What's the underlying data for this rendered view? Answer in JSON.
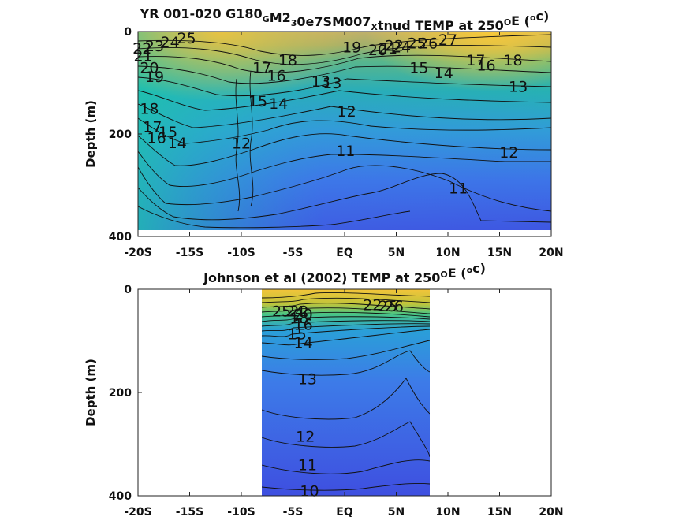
{
  "chart_data": [
    {
      "type": "contour",
      "title_parts": [
        "YR 001-020 G180",
        "G",
        "M2",
        "3",
        "0e7SM007",
        "X",
        "tnud TEMP at 250",
        "O",
        "E (",
        "o",
        "c)"
      ],
      "ylabel": "Depth (m)",
      "xlim": [
        -20,
        20
      ],
      "ylim": [
        0,
        400
      ],
      "x_ticks": [
        -20,
        -15,
        -10,
        -5,
        0,
        5,
        10,
        15,
        20
      ],
      "x_tick_labels": [
        "-20S",
        "-15S",
        "-10S",
        "-5S",
        "EQ",
        "5N",
        "10N",
        "15N",
        "20N"
      ],
      "y_ticks": [
        0,
        200,
        400
      ],
      "y_tick_labels": [
        "0",
        "200",
        "400"
      ],
      "data_extent": {
        "lat": [
          -20,
          20
        ],
        "depth": [
          0,
          387
        ]
      },
      "colormap": [
        "#3e4fe0",
        "#3d74e8",
        "#2ea6d4",
        "#21c0a6",
        "#62cc6a",
        "#c2c43a",
        "#f3c43a"
      ],
      "contour_labels": [
        {
          "text": "25",
          "lat": -15.3,
          "depth": 12
        },
        {
          "text": "24",
          "lat": -16.9,
          "depth": 20
        },
        {
          "text": "23",
          "lat": -18.4,
          "depth": 28
        },
        {
          "text": "22",
          "lat": -19.6,
          "depth": 32
        },
        {
          "text": "21",
          "lat": -19.5,
          "depth": 47
        },
        {
          "text": "20",
          "lat": -18.9,
          "depth": 70
        },
        {
          "text": "19",
          "lat": -18.4,
          "depth": 88
        },
        {
          "text": "18",
          "lat": -18.9,
          "depth": 150
        },
        {
          "text": "17",
          "lat": -18.6,
          "depth": 185
        },
        {
          "text": "16",
          "lat": -18.2,
          "depth": 207
        },
        {
          "text": "15",
          "lat": -17.1,
          "depth": 195
        },
        {
          "text": "14",
          "lat": -16.2,
          "depth": 217
        },
        {
          "text": "12",
          "lat": -10.0,
          "depth": 218
        },
        {
          "text": "11",
          "lat": 0.1,
          "depth": 232
        },
        {
          "text": "12",
          "lat": 0.2,
          "depth": 155
        },
        {
          "text": "13",
          "lat": -2.3,
          "depth": 97
        },
        {
          "text": "14",
          "lat": -6.4,
          "depth": 140
        },
        {
          "text": "15",
          "lat": -8.4,
          "depth": 135
        },
        {
          "text": "16",
          "lat": -6.6,
          "depth": 85
        },
        {
          "text": "17",
          "lat": -8.0,
          "depth": 70
        },
        {
          "text": "18",
          "lat": -5.5,
          "depth": 55
        },
        {
          "text": "19",
          "lat": 0.7,
          "depth": 30
        },
        {
          "text": "20",
          "lat": 3.2,
          "depth": 35
        },
        {
          "text": "21",
          "lat": 4.2,
          "depth": 32
        },
        {
          "text": "22",
          "lat": 4.8,
          "depth": 27
        },
        {
          "text": "24",
          "lat": 5.5,
          "depth": 30
        },
        {
          "text": "25",
          "lat": 7.0,
          "depth": 22
        },
        {
          "text": "26",
          "lat": 8.1,
          "depth": 22
        },
        {
          "text": "27",
          "lat": 10.0,
          "depth": 15
        },
        {
          "text": "15",
          "lat": 7.2,
          "depth": 70
        },
        {
          "text": "14",
          "lat": 9.6,
          "depth": 80
        },
        {
          "text": "17",
          "lat": 12.7,
          "depth": 55
        },
        {
          "text": "16",
          "lat": 13.7,
          "depth": 65
        },
        {
          "text": "18",
          "lat": 16.3,
          "depth": 55
        },
        {
          "text": "13",
          "lat": -1.2,
          "depth": 100
        },
        {
          "text": "13",
          "lat": 16.8,
          "depth": 107
        },
        {
          "text": "12",
          "lat": 15.9,
          "depth": 235
        },
        {
          "text": "11",
          "lat": 11.0,
          "depth": 305
        }
      ]
    },
    {
      "type": "contour",
      "title_parts": [
        "Johnson et al (2002) TEMP at 250",
        "O",
        "E (",
        "o",
        "c)"
      ],
      "ylabel": "Depth (m)",
      "xlim": [
        -20,
        20
      ],
      "ylim": [
        0,
        400
      ],
      "x_ticks": [
        -20,
        -15,
        -10,
        -5,
        0,
        5,
        10,
        15,
        20
      ],
      "x_tick_labels": [
        "-20S",
        "-15S",
        "-10S",
        "-5S",
        "EQ",
        "5N",
        "10N",
        "15N",
        "20N"
      ],
      "y_ticks": [
        0,
        200,
        400
      ],
      "y_tick_labels": [
        "0",
        "200",
        "400"
      ],
      "data_extent": {
        "lat": [
          -8,
          8.3
        ],
        "depth": [
          0,
          400
        ]
      },
      "colormap": [
        "#3e4fe0",
        "#3d74e8",
        "#2ea6d4",
        "#21c0a6",
        "#62cc6a",
        "#c2c43a",
        "#f3c43a"
      ],
      "contour_labels": [
        {
          "text": "25",
          "lat": -6.1,
          "depth": 42
        },
        {
          "text": "24",
          "lat": -4.8,
          "depth": 42
        },
        {
          "text": "22",
          "lat": -4.4,
          "depth": 42
        },
        {
          "text": "20",
          "lat": -4.0,
          "depth": 48
        },
        {
          "text": "18",
          "lat": -4.4,
          "depth": 55
        },
        {
          "text": "16",
          "lat": -4.0,
          "depth": 68
        },
        {
          "text": "15",
          "lat": -4.6,
          "depth": 86
        },
        {
          "text": "14",
          "lat": -4.0,
          "depth": 103
        },
        {
          "text": "13",
          "lat": -3.6,
          "depth": 173
        },
        {
          "text": "12",
          "lat": -3.8,
          "depth": 285
        },
        {
          "text": "11",
          "lat": -3.6,
          "depth": 340
        },
        {
          "text": "10",
          "lat": -3.4,
          "depth": 390
        },
        {
          "text": "22",
          "lat": 2.7,
          "depth": 30
        },
        {
          "text": "25",
          "lat": 4.2,
          "depth": 32
        },
        {
          "text": "26",
          "lat": 4.8,
          "depth": 32
        }
      ]
    }
  ]
}
